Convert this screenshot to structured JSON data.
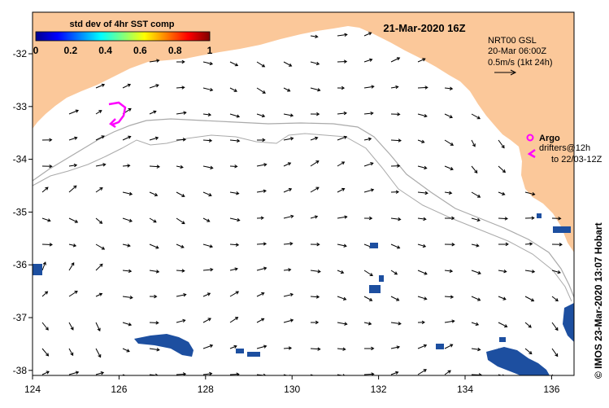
{
  "colorbar": {
    "title": "std dev of 4hr SST comp",
    "ticks": [
      "0",
      "0.2",
      "0.4",
      "0.6",
      "0.8",
      "1"
    ]
  },
  "map": {
    "timestamp": "21-Mar-2020 16Z",
    "x_ticks": [
      "124",
      "126",
      "128",
      "130",
      "132",
      "134",
      "136"
    ],
    "y_ticks": [
      "-32",
      "-33",
      "-34",
      "-35",
      "-36",
      "-37",
      "-38"
    ]
  },
  "legend": {
    "current_source_line1": "NRT00 GSL",
    "current_source_line2": "20-Mar 06:00Z",
    "scale_text": "0.5m/s (1kt 24h)",
    "argo_label": "Argo",
    "drifters_line1": "drifters@12h",
    "drifters_line2": "to 22/03-12Z"
  },
  "credit": "© IMOS 23-Mar-2020 13:07 Hobart",
  "colors": {
    "land": "#fbc89a",
    "marker": "#ff00ff",
    "contour": "#aaaaaa",
    "patch": "#1d4fa0"
  }
}
